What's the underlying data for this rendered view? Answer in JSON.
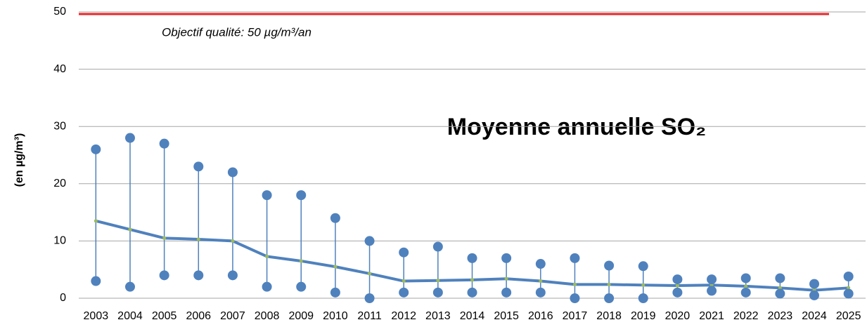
{
  "chart_data": {
    "type": "line",
    "title": "Moyenne annuelle SO₂",
    "y_label": "(en µg/m³)",
    "categories": [
      "2003",
      "2004",
      "2005",
      "2006",
      "2007",
      "2008",
      "2009",
      "2010",
      "2011",
      "2012",
      "2013",
      "2014",
      "2015",
      "2016",
      "2017",
      "2018",
      "2019",
      "2020",
      "2021",
      "2022",
      "2023",
      "2024",
      "2025"
    ],
    "mean": {
      "color": "#4f81bd",
      "marker_color": "#9bbb59",
      "values": [
        13.5,
        12,
        10.5,
        10.3,
        10,
        7.3,
        6.5,
        5.5,
        4.3,
        3,
        3.1,
        3.2,
        3.4,
        3,
        2.4,
        2.4,
        2.3,
        2.2,
        2.3,
        2.1,
        1.8,
        1.4,
        1.8
      ]
    },
    "max": {
      "color": "#4f81bd",
      "values": [
        26,
        28,
        27,
        23,
        22,
        18,
        18,
        14,
        10,
        8,
        9,
        7,
        7,
        6,
        7,
        5.7,
        5.6,
        3.3,
        3.3,
        3.5,
        3.5,
        2.5,
        3.8
      ]
    },
    "min": {
      "color": "#4f81bd",
      "values": [
        3,
        2,
        4,
        4,
        4,
        2,
        2,
        1,
        0,
        1,
        1,
        1,
        1,
        1,
        0,
        0,
        0,
        1,
        1.3,
        1,
        0.8,
        0.5,
        0.8
      ]
    },
    "threshold": {
      "value": 50,
      "label": "Objectif qualité: 50 µg/m³/an",
      "color": "#e8262b"
    },
    "ylim": [
      0,
      50
    ],
    "yticks": [
      0,
      10,
      20,
      30,
      40,
      50
    ],
    "grid": true
  }
}
